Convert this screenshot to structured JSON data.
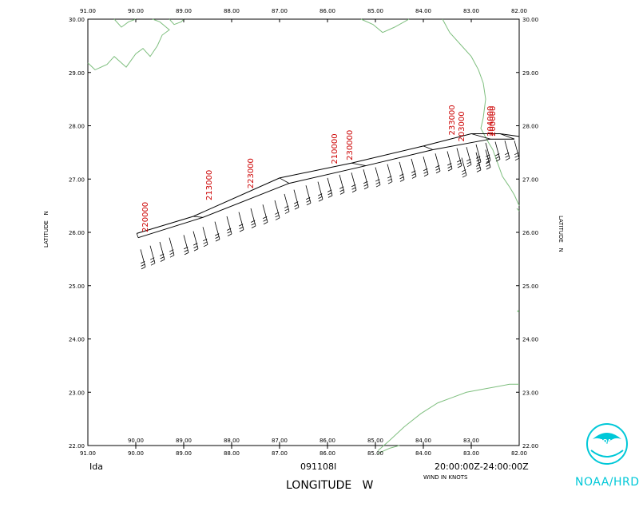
{
  "map": {
    "storm_name": "Ida",
    "flight_id": "091108I",
    "time_range": "20:00:00Z-24:00:00Z",
    "wind_units": "WIND IN KNOTS",
    "x_axis_title": "LONGITUDE   W",
    "y_axis_title": "LATITUDE   N",
    "y_axis_title_right": "LATITUDE   N",
    "lon_ticks": [
      "91.00",
      "90.00",
      "89.00",
      "88.00",
      "87.00",
      "86.00",
      "85.00",
      "84.00",
      "83.00",
      "82.00"
    ],
    "lat_ticks": [
      "22.00",
      "23.00",
      "24.00",
      "25.00",
      "26.00",
      "27.00",
      "28.00",
      "29.00",
      "30.00"
    ],
    "lon_range": [
      91.0,
      82.0
    ],
    "lat_range": [
      22.0,
      30.0
    ],
    "coast_color": "#7fbf7f",
    "track_color": "#000000",
    "time_label_color": "#cc0000"
  },
  "flight_times": [
    {
      "label": "220000",
      "lon": 89.75,
      "lat": 26.0
    },
    {
      "label": "213000",
      "lon": 88.42,
      "lat": 26.6
    },
    {
      "label": "223000",
      "lon": 87.55,
      "lat": 26.82
    },
    {
      "label": "210000",
      "lon": 85.8,
      "lat": 27.28
    },
    {
      "label": "230000",
      "lon": 85.48,
      "lat": 27.35
    },
    {
      "label": "233000",
      "lon": 83.35,
      "lat": 27.82
    },
    {
      "label": "203000",
      "lon": 83.15,
      "lat": 27.7
    },
    {
      "label": "204000",
      "lon": 82.55,
      "lat": 27.8
    },
    {
      "label": "200000",
      "lon": 82.5,
      "lat": 27.8
    }
  ],
  "track_outbound": [
    [
      89.98,
      25.98
    ],
    [
      88.8,
      26.3
    ],
    [
      87.0,
      27.02
    ],
    [
      85.5,
      27.3
    ],
    [
      84.0,
      27.62
    ],
    [
      83.0,
      27.85
    ],
    [
      82.4,
      27.85
    ],
    [
      82.0,
      27.8
    ]
  ],
  "track_inbound": [
    [
      89.95,
      25.9
    ],
    [
      88.6,
      26.28
    ],
    [
      86.8,
      26.92
    ],
    [
      85.2,
      27.25
    ],
    [
      83.8,
      27.55
    ],
    [
      82.6,
      27.75
    ],
    [
      82.1,
      27.75
    ]
  ],
  "wind_barbs": [
    [
      89.9,
      25.68
    ],
    [
      89.7,
      25.75
    ],
    [
      89.5,
      25.82
    ],
    [
      89.3,
      25.9
    ],
    [
      89.0,
      25.95
    ],
    [
      88.8,
      26.02
    ],
    [
      88.6,
      26.1
    ],
    [
      88.35,
      26.2
    ],
    [
      88.1,
      26.3
    ],
    [
      87.85,
      26.38
    ],
    [
      87.6,
      26.45
    ],
    [
      87.35,
      26.52
    ],
    [
      87.1,
      26.6
    ],
    [
      86.9,
      26.72
    ],
    [
      86.7,
      26.8
    ],
    [
      86.45,
      26.88
    ],
    [
      86.2,
      26.95
    ],
    [
      86.0,
      27.02
    ],
    [
      85.75,
      27.08
    ],
    [
      85.5,
      27.12
    ],
    [
      85.25,
      27.18
    ],
    [
      85.0,
      27.22
    ],
    [
      84.75,
      27.28
    ],
    [
      84.5,
      27.32
    ],
    [
      84.25,
      27.38
    ],
    [
      84.0,
      27.42
    ],
    [
      83.75,
      27.48
    ],
    [
      83.5,
      27.52
    ],
    [
      83.3,
      27.58
    ],
    [
      83.1,
      27.6
    ],
    [
      82.9,
      27.65
    ],
    [
      82.7,
      27.68
    ],
    [
      82.5,
      27.7
    ],
    [
      82.3,
      27.72
    ],
    [
      82.1,
      27.72
    ],
    [
      82.9,
      27.5
    ],
    [
      82.7,
      27.55
    ],
    [
      83.2,
      27.4
    ]
  ],
  "logo": {
    "text": "NOAA",
    "caption": "NOAA/HRD"
  }
}
